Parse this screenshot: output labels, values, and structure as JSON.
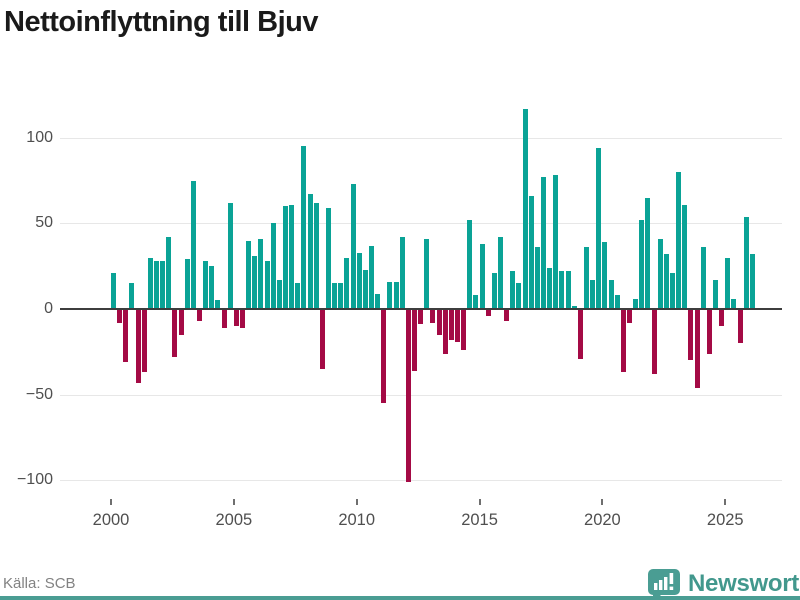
{
  "title": "Nettoinflyttning till Bjuv",
  "source": "Källa: SCB",
  "brand": {
    "name": "Newsworthy",
    "icon": "bar-chart-badge-icon"
  },
  "colors": {
    "positive_bar": "#0aa396",
    "negative_bar": "#a40a45",
    "grid": "#e7e7e7",
    "zero_line": "#3d3d3d",
    "axis_text": "#4f4f4f",
    "title_text": "#1a1a1a",
    "source_text": "#828282",
    "brand_teal": "#4a9d93",
    "background": "#ffffff"
  },
  "chart_data": {
    "type": "bar",
    "title": "Nettoinflyttning till Bjuv",
    "x_start": "2000Q1",
    "x_freq": "quarterly",
    "x_tick_labels": [
      "2000",
      "2005",
      "2010",
      "2015",
      "2020",
      "2025"
    ],
    "x_tick_every_n_bars": 20,
    "y_ticks": [
      100,
      50,
      0,
      -50,
      -100
    ],
    "y_tick_labels": [
      "100",
      "50",
      "0",
      "−50",
      "−100"
    ],
    "ylim": [
      -117,
      122
    ],
    "grid": "horizontal",
    "legend": "none",
    "values": [
      21,
      -8,
      -31,
      15,
      -43,
      -37,
      30,
      28,
      28,
      42,
      -28,
      -15,
      29,
      75,
      -7,
      28,
      25,
      5,
      -11,
      62,
      -10,
      -11,
      40,
      31,
      41,
      28,
      50,
      17,
      60,
      61,
      15,
      95,
      67,
      62,
      -35,
      59,
      15,
      15,
      30,
      73,
      33,
      23,
      37,
      9,
      -55,
      16,
      16,
      42,
      -101,
      -36,
      -9,
      41,
      -8,
      -15,
      -26,
      -18,
      -19,
      -24,
      52,
      8,
      38,
      -4,
      21,
      42,
      -7,
      22,
      15,
      117,
      66,
      36,
      77,
      24,
      78,
      22,
      22,
      2,
      -29,
      36,
      17,
      94,
      39,
      17,
      8,
      -37,
      -8,
      6,
      52,
      65,
      -38,
      41,
      32,
      21,
      80,
      61,
      -30,
      -46,
      36,
      -26,
      17,
      -10,
      30,
      6,
      -20,
      54,
      32
    ]
  }
}
